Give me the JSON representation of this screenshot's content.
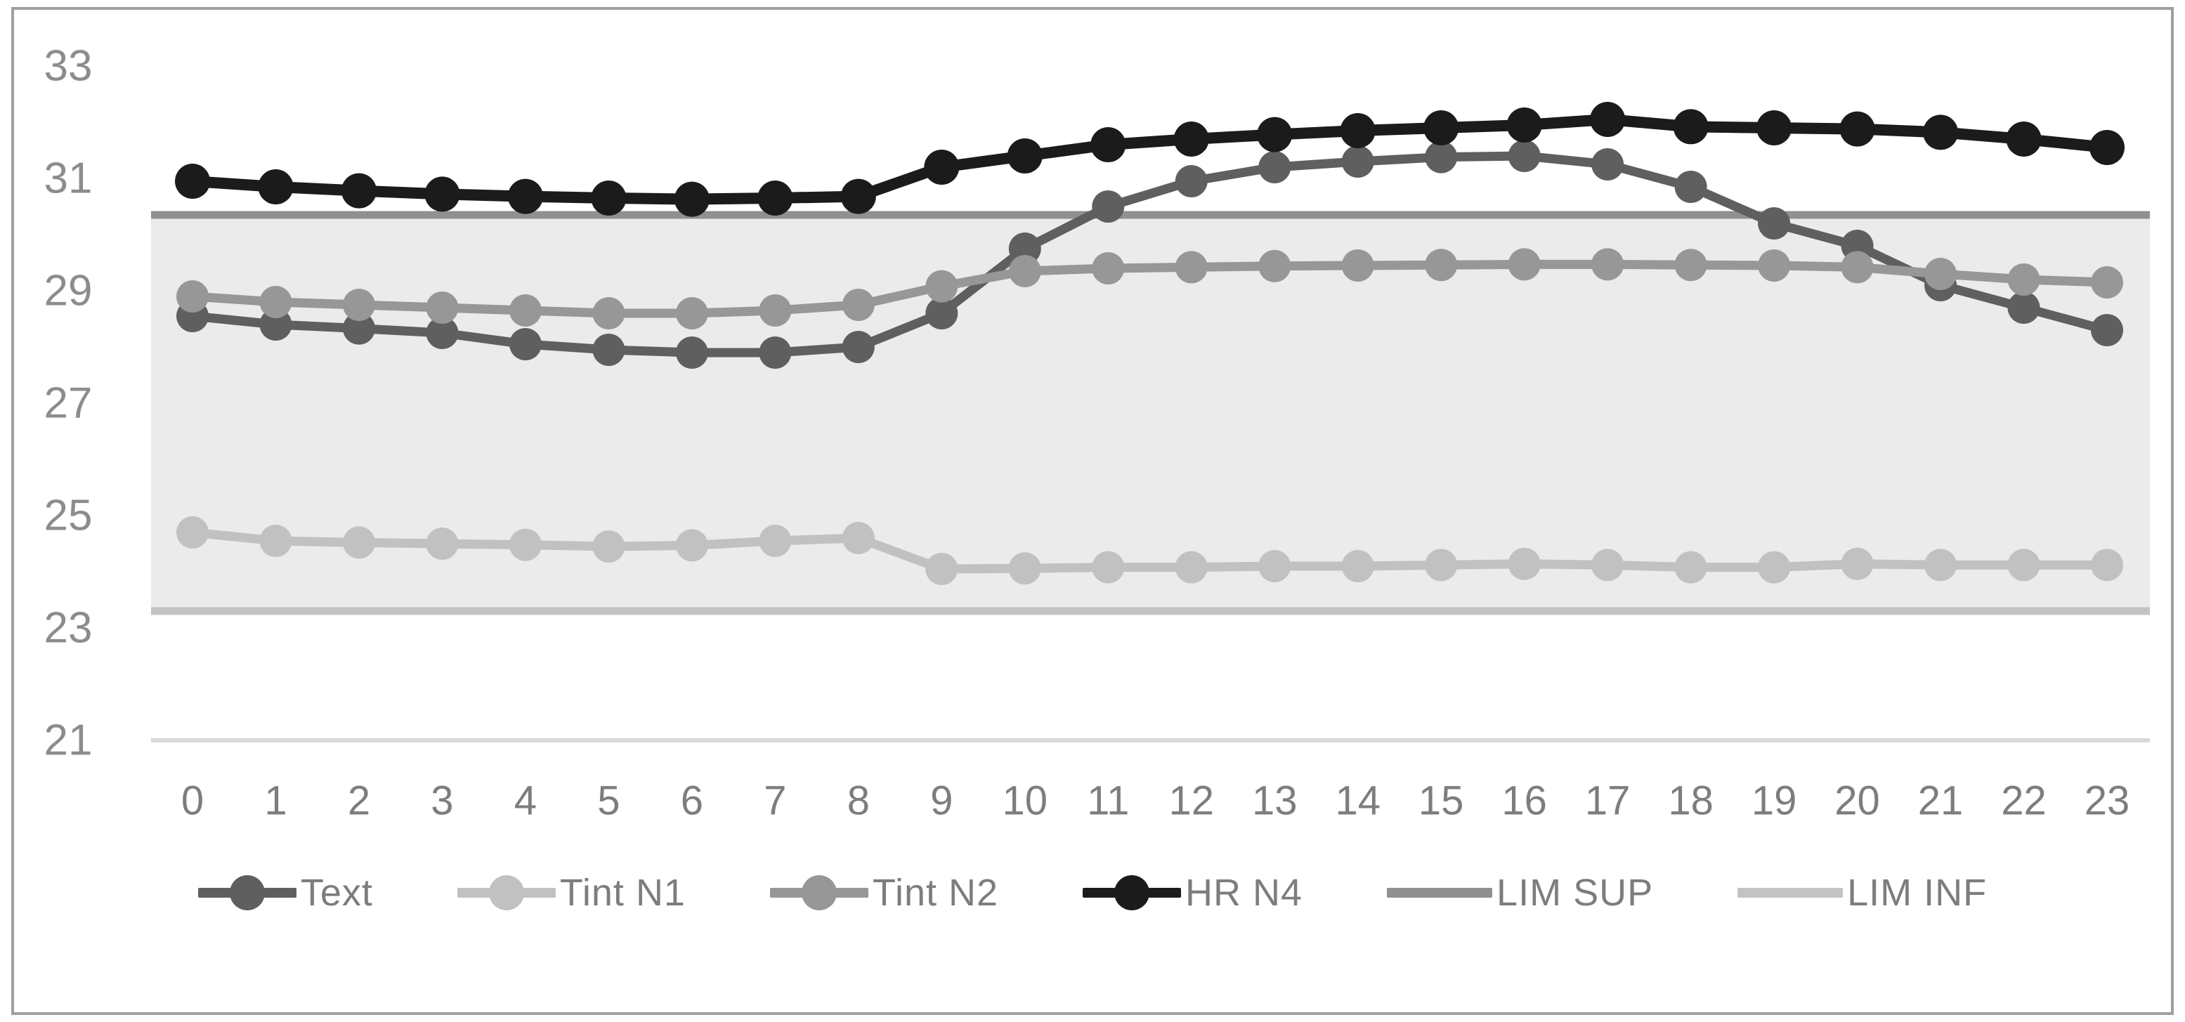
{
  "figure": {
    "background": "#ffffff",
    "border_color": "#9f9f9f",
    "title": ""
  },
  "chart_data": {
    "type": "line",
    "title": "",
    "xlabel": "",
    "ylabel": "",
    "x_categories": [
      "0",
      "1",
      "2",
      "3",
      "4",
      "5",
      "6",
      "7",
      "8",
      "9",
      "10",
      "11",
      "12",
      "13",
      "14",
      "15",
      "16",
      "17",
      "18",
      "19",
      "20",
      "21",
      "22",
      "23"
    ],
    "yticks": [
      33,
      31,
      29,
      27,
      25,
      23,
      21
    ],
    "ylim": [
      20.2,
      33.6
    ],
    "grid": "single-line-at-21",
    "gridline": {
      "value": 21,
      "color": "#d8d8d8"
    },
    "band": {
      "from": 23.3,
      "to": 30.35,
      "fill": "#ebebeb"
    },
    "axis_tick_color": "#8c8c8c",
    "x_tick_color": "#7d7d7d",
    "legend_position": "bottom",
    "series": [
      {
        "name": "Text",
        "color": "#5f5f5f",
        "marker": true,
        "values": [
          28.55,
          28.4,
          28.33,
          28.25,
          28.05,
          27.95,
          27.9,
          27.9,
          28.0,
          28.6,
          29.75,
          30.5,
          30.95,
          31.2,
          31.3,
          31.38,
          31.4,
          31.25,
          30.85,
          30.2,
          29.8,
          29.1,
          28.7,
          28.3
        ]
      },
      {
        "name": "Tint N1",
        "color": "#c1c1c1",
        "marker": true,
        "values": [
          24.7,
          24.55,
          24.52,
          24.5,
          24.48,
          24.45,
          24.47,
          24.55,
          24.6,
          24.05,
          24.06,
          24.08,
          24.08,
          24.1,
          24.1,
          24.12,
          24.14,
          24.12,
          24.08,
          24.08,
          24.14,
          24.12,
          24.12,
          24.12
        ]
      },
      {
        "name": "Tint N2",
        "color": "#979797",
        "marker": true,
        "values": [
          28.9,
          28.8,
          28.75,
          28.7,
          28.65,
          28.6,
          28.6,
          28.65,
          28.75,
          29.08,
          29.35,
          29.4,
          29.42,
          29.44,
          29.45,
          29.46,
          29.47,
          29.47,
          29.46,
          29.45,
          29.42,
          29.3,
          29.2,
          29.15
        ]
      },
      {
        "name": "HR N4",
        "color": "#1b1b1b",
        "marker": true,
        "values": [
          30.95,
          30.85,
          30.78,
          30.72,
          30.68,
          30.65,
          30.63,
          30.65,
          30.68,
          31.2,
          31.4,
          31.6,
          31.7,
          31.78,
          31.85,
          31.9,
          31.95,
          32.05,
          31.92,
          31.9,
          31.88,
          31.82,
          31.7,
          31.55
        ]
      },
      {
        "name": "LIM SUP",
        "color": "#909090",
        "marker": false,
        "constant": 30.35
      },
      {
        "name": "LIM INF",
        "color": "#c3c3c3",
        "marker": false,
        "constant": 23.3
      }
    ]
  }
}
